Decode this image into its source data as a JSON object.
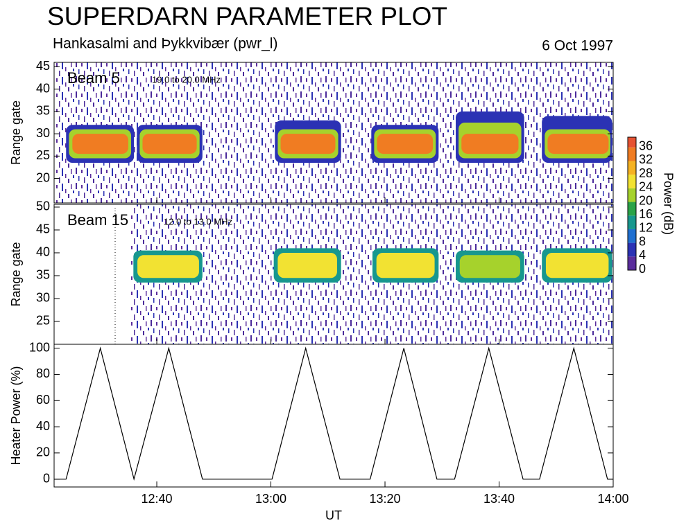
{
  "title": "SUPERDARN PARAMETER PLOT",
  "subtitle": "Hankasalmi and Þykkvibær (pwr_l)",
  "date": "6 Oct 1997",
  "colorbar": {
    "label": "Power (dB)",
    "clim": [
      0,
      39
    ],
    "ticks": [
      0,
      4,
      8,
      12,
      16,
      20,
      24,
      28,
      32,
      36
    ],
    "colors": [
      "#5a2d9c",
      "#2b32b4",
      "#1f6fd0",
      "#17978e",
      "#2aa348",
      "#a6d22c",
      "#f2e232",
      "#f5b222",
      "#f07c22",
      "#e65232"
    ]
  },
  "chart_data": [
    {
      "type": "rti",
      "label": "Beam 5",
      "frequency": "19.0 to 20.0 MHz",
      "ylabel": "Range gate",
      "ylim": [
        14.5,
        46
      ],
      "yticks": [
        20,
        25,
        30,
        35,
        40,
        45
      ],
      "echoes": [
        {
          "x": [
            24.1,
            36.0
          ],
          "gates": [
            23.5,
            32
          ],
          "power": 4
        },
        {
          "x": [
            24.6,
            35.5
          ],
          "gates": [
            24.5,
            31
          ],
          "power": 20
        },
        {
          "x": [
            25.2,
            35.0
          ],
          "gates": [
            25.5,
            30
          ],
          "power": 34
        },
        {
          "x": [
            36.5,
            48.0
          ],
          "gates": [
            23.5,
            32
          ],
          "power": 4
        },
        {
          "x": [
            37.0,
            47.5
          ],
          "gates": [
            24.5,
            31
          ],
          "power": 20
        },
        {
          "x": [
            37.5,
            47.0
          ],
          "gates": [
            25.5,
            30
          ],
          "power": 34
        },
        {
          "x": [
            60.7,
            72.3
          ],
          "gates": [
            23.5,
            33
          ],
          "power": 4
        },
        {
          "x": [
            61.2,
            71.8
          ],
          "gates": [
            24.5,
            31
          ],
          "power": 20
        },
        {
          "x": [
            61.7,
            71.3
          ],
          "gates": [
            25.5,
            30
          ],
          "power": 34
        },
        {
          "x": [
            77.6,
            89.4
          ],
          "gates": [
            23.5,
            32
          ],
          "power": 4
        },
        {
          "x": [
            78.1,
            88.9
          ],
          "gates": [
            24.5,
            31
          ],
          "power": 20
        },
        {
          "x": [
            78.6,
            88.4
          ],
          "gates": [
            25.5,
            30
          ],
          "power": 34
        },
        {
          "x": [
            92.4,
            104.4
          ],
          "gates": [
            23.5,
            35
          ],
          "power": 4
        },
        {
          "x": [
            92.9,
            103.9
          ],
          "gates": [
            24.5,
            32.5
          ],
          "power": 20
        },
        {
          "x": [
            93.4,
            103.4
          ],
          "gates": [
            25.5,
            30
          ],
          "power": 34
        },
        {
          "x": [
            107.5,
            119.8
          ],
          "gates": [
            23.5,
            34
          ],
          "power": 4
        },
        {
          "x": [
            108.0,
            119.5
          ],
          "gates": [
            24.5,
            31
          ],
          "power": 20
        },
        {
          "x": [
            108.5,
            119.2
          ],
          "gates": [
            25.5,
            30
          ],
          "power": 34
        }
      ]
    },
    {
      "type": "rti",
      "label": "Beam 15",
      "frequency": "12.0 to 13.0 MHz",
      "ylabel": "Range gate",
      "ylim": [
        20,
        50.6
      ],
      "yticks": [
        25,
        30,
        35,
        40,
        45,
        50
      ],
      "echoes": [
        {
          "x": [
            35.9,
            48.0
          ],
          "gates": [
            33.5,
            40.5
          ],
          "power": 14
        },
        {
          "x": [
            36.6,
            47.4
          ],
          "gates": [
            34.5,
            39.5
          ],
          "power": 24
        },
        {
          "x": [
            60.5,
            72.3
          ],
          "gates": [
            33.5,
            41
          ],
          "power": 14
        },
        {
          "x": [
            61.2,
            71.6
          ],
          "gates": [
            34.5,
            40
          ],
          "power": 24
        },
        {
          "x": [
            77.8,
            89.4
          ],
          "gates": [
            33.5,
            41
          ],
          "power": 14
        },
        {
          "x": [
            78.5,
            88.7
          ],
          "gates": [
            34.5,
            40
          ],
          "power": 24
        },
        {
          "x": [
            92.4,
            104.4
          ],
          "gates": [
            33.5,
            40.5
          ],
          "power": 14
        },
        {
          "x": [
            93.1,
            103.7
          ],
          "gates": [
            34.5,
            39.5
          ],
          "power": 20
        },
        {
          "x": [
            107.5,
            119.8
          ],
          "gates": [
            33.5,
            41
          ],
          "power": 14
        },
        {
          "x": [
            108.2,
            119.2
          ],
          "gates": [
            34.5,
            40
          ],
          "power": 24
        }
      ]
    },
    {
      "type": "line",
      "ylabel": "Heater Power (%)",
      "xlabel": "UT",
      "xlim": [
        22,
        120
      ],
      "xticks": [
        {
          "value": 40,
          "label": "12:40"
        },
        {
          "value": 60,
          "label": "13:00"
        },
        {
          "value": 80,
          "label": "13:20"
        },
        {
          "value": 100,
          "label": "13:40"
        },
        {
          "value": 120,
          "label": "14:00"
        }
      ],
      "ylim": [
        -6,
        103
      ],
      "yticks": [
        0,
        20,
        40,
        60,
        80,
        100
      ],
      "color": "#000000",
      "x": [
        22,
        24.1,
        30.1,
        36.0,
        42.1,
        48.0,
        60.2,
        66.1,
        72.1,
        77.4,
        83.3,
        89.1,
        92.2,
        98.2,
        104.2,
        107.1,
        113.1,
        119.0,
        120
      ],
      "values": [
        0,
        0,
        100,
        0,
        100,
        0,
        0,
        100,
        0,
        0,
        100,
        0,
        0,
        100,
        0,
        0,
        100,
        0,
        0
      ]
    }
  ]
}
